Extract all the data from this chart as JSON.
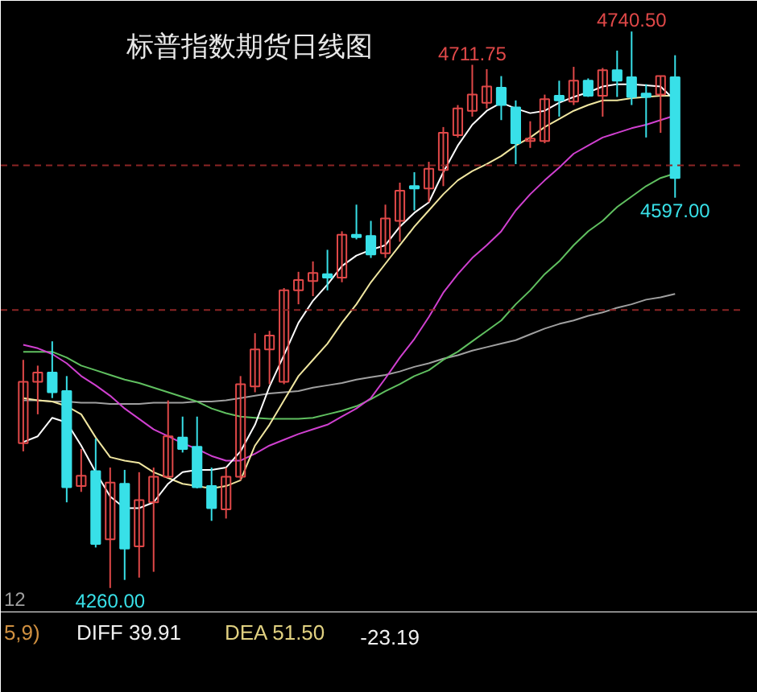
{
  "chart_data": {
    "type": "candlestick",
    "title": "标普指数期货日线图",
    "categories": [
      null,
      null,
      null,
      null,
      null,
      null,
      null,
      null,
      null,
      null,
      null,
      null,
      null,
      null,
      null,
      null,
      null,
      null,
      null,
      null,
      null,
      null,
      null,
      null,
      null,
      null,
      null,
      null,
      null,
      null,
      null,
      null,
      null,
      null,
      null,
      null,
      null,
      null,
      null,
      null,
      null,
      null,
      null,
      null,
      null,
      null
    ],
    "ohlc": [
      [
        4385,
        4457,
        4378,
        4438
      ],
      [
        4438,
        4452,
        4410,
        4446
      ],
      [
        4446,
        4473,
        4424,
        4429
      ],
      [
        4430,
        4443,
        4334,
        4347
      ],
      [
        4348,
        4380,
        4343,
        4357
      ],
      [
        4361,
        4389,
        4295,
        4298
      ],
      [
        4302,
        4364,
        4260,
        4351
      ],
      [
        4350,
        4362,
        4267,
        4294
      ],
      [
        4296,
        4360,
        4269,
        4336
      ],
      [
        4334,
        4364,
        4274,
        4356
      ],
      [
        4356,
        4422,
        4355,
        4391
      ],
      [
        4390,
        4408,
        4377,
        4380
      ],
      [
        4382,
        4408,
        4346,
        4347
      ],
      [
        4348,
        4364,
        4318,
        4329
      ],
      [
        4328,
        4364,
        4320,
        4356
      ],
      [
        4356,
        4443,
        4353,
        4436
      ],
      [
        4434,
        4480,
        4429,
        4466
      ],
      [
        4466,
        4482,
        4436,
        4478
      ],
      [
        4438,
        4519,
        4436,
        4517
      ],
      [
        4517,
        4533,
        4505,
        4526
      ],
      [
        4525,
        4542,
        4512,
        4532
      ],
      [
        4531,
        4552,
        4517,
        4528
      ],
      [
        4528,
        4568,
        4524,
        4565
      ],
      [
        4565,
        4591,
        4561,
        4563
      ],
      [
        4564,
        4577,
        4545,
        4548
      ],
      [
        4549,
        4591,
        4545,
        4579
      ],
      [
        4577,
        4610,
        4559,
        4603
      ],
      [
        4607,
        4619,
        4586,
        4605
      ],
      [
        4605,
        4628,
        4593,
        4622
      ],
      [
        4621,
        4658,
        4607,
        4653
      ],
      [
        4651,
        4677,
        4649,
        4674
      ],
      [
        4672,
        4711.75,
        4667,
        4686
      ],
      [
        4679,
        4708,
        4674,
        4693
      ],
      [
        4692,
        4702,
        4664,
        4677
      ],
      [
        4675,
        4681,
        4626,
        4644
      ],
      [
        4646,
        4663,
        4640,
        4648
      ],
      [
        4646,
        4686,
        4644,
        4682
      ],
      [
        4685,
        4698,
        4667,
        4681
      ],
      [
        4680,
        4710,
        4677,
        4698
      ],
      [
        4698,
        4700,
        4684,
        4685
      ],
      [
        4685,
        4709,
        4667,
        4707
      ],
      [
        4707,
        4724,
        4684,
        4698
      ],
      [
        4701,
        4740.5,
        4677,
        4684
      ],
      [
        4687,
        4695,
        4649,
        4684
      ],
      [
        4686,
        4702,
        4653,
        4702
      ],
      [
        4701,
        4720,
        4597,
        4614
      ]
    ],
    "series": [
      {
        "type": "line",
        "color": "#a0a0a0",
        "values": [
          4422,
          4422,
          4421,
          4421,
          4420,
          4420,
          4419,
          4419,
          4419,
          4420,
          4420,
          4420,
          4421,
          4421,
          4422,
          4424,
          4426,
          4428,
          4429,
          4430,
          4433,
          4435,
          4437,
          4440,
          4442,
          4444,
          4447,
          4451,
          4454,
          4458,
          4461,
          4465,
          4468,
          4471,
          4474,
          4479,
          4484,
          4488,
          4491,
          4495,
          4498,
          4502,
          4505,
          4509,
          4511,
          4514
        ]
      },
      {
        "type": "line",
        "color": "#60c060",
        "values": [
          4464,
          4464,
          4464,
          4459,
          4452,
          4448,
          4444,
          4440,
          4437,
          4433,
          4429,
          4425,
          4421,
          4415,
          4411,
          4408,
          4407,
          4406,
          4406,
          4406,
          4407,
          4410,
          4413,
          4417,
          4423,
          4430,
          4436,
          4443,
          4448,
          4457,
          4464,
          4473,
          4482,
          4491,
          4505,
          4517,
          4531,
          4542,
          4556,
          4568,
          4577,
          4589,
          4598,
          4607,
          4614,
          4618
        ]
      },
      {
        "type": "line",
        "color": "#d040d0",
        "values": [
          4470,
          4467,
          4462,
          4454,
          4443,
          4435,
          4426,
          4415,
          4406,
          4397,
          4391,
          4385,
          4380,
          4374,
          4370,
          4370,
          4376,
          4383,
          4388,
          4393,
          4397,
          4401,
          4408,
          4415,
          4424,
          4441,
          4459,
          4475,
          4494,
          4515,
          4531,
          4545,
          4556,
          4568,
          4586,
          4600,
          4612,
          4623,
          4635,
          4642,
          4649,
          4653,
          4657,
          4660,
          4664,
          4668
        ]
      },
      {
        "type": "line",
        "color": "#f0e6a0",
        "values": [
          4424,
          4422,
          4421,
          4417,
          4410,
          4390,
          4373,
          4370,
          4368,
          4360,
          4355,
          4350,
          4348,
          4346,
          4348,
          4353,
          4383,
          4401,
          4422,
          4443,
          4457,
          4471,
          4489,
          4505,
          4524,
          4540,
          4556,
          4572,
          4586,
          4600,
          4612,
          4620,
          4626,
          4633,
          4642,
          4649,
          4658,
          4665,
          4672,
          4677,
          4681,
          4681,
          4683,
          4684,
          4685,
          4685
        ]
      },
      {
        "type": "line",
        "color": "#ffffff",
        "values": [
          4386,
          4391,
          4407,
          4403,
          4383,
          4360,
          4339,
          4329,
          4329,
          4334,
          4350,
          4360,
          4362,
          4362,
          4364,
          4378,
          4401,
          4434,
          4461,
          4489,
          4508,
          4522,
          4538,
          4547,
          4552,
          4556,
          4572,
          4584,
          4593,
          4619,
          4642,
          4660,
          4672,
          4679,
          4674,
          4670,
          4672,
          4679,
          4684,
          4688,
          4693,
          4695,
          4695,
          4694,
          4693,
          4681
        ]
      }
    ],
    "ylim": [
      4239,
      4767
    ],
    "tick_labels": false,
    "ref_lines": [
      {
        "axis": "y",
        "value": 4625,
        "color": "#8b2525",
        "line_style": "dashed"
      },
      {
        "axis": "y",
        "value": 4500,
        "color": "#8b2525",
        "line_style": "dashed"
      }
    ],
    "annotations": [
      {
        "text": "4711.75",
        "y": 4711.75
      },
      {
        "text": "4740.50",
        "y": 4740.5
      },
      {
        "text": "4597.00",
        "y": 4597
      },
      {
        "text": "4260.00",
        "y": 4260
      },
      "12",
      "5,9)",
      "DIFF 39.91",
      "DEA 51.50",
      "-23.19"
    ]
  }
}
